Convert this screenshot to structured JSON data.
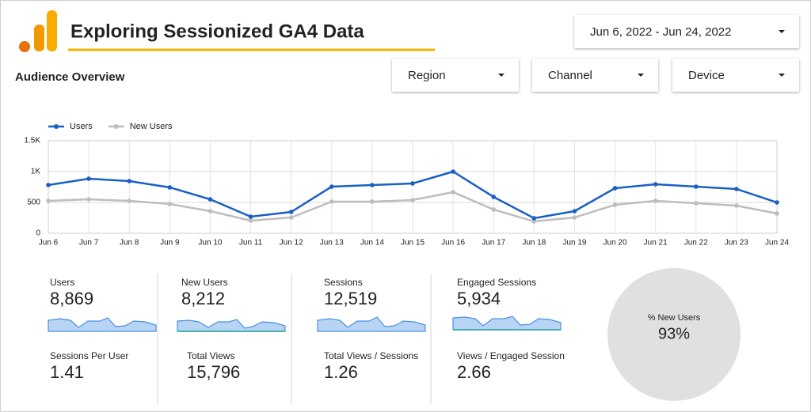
{
  "header": {
    "title": "Exploring Sessionized GA4 Data",
    "date_range": "Jun 6, 2022 - Jun 24, 2022",
    "section": "Audience Overview",
    "filters": [
      "Region",
      "Channel",
      "Device"
    ]
  },
  "chart_data": {
    "type": "line",
    "categories": [
      "Jun 6",
      "Jun 7",
      "Jun 8",
      "Jun 9",
      "Jun 10",
      "Jun 11",
      "Jun 12",
      "Jun 13",
      "Jun 14",
      "Jun 15",
      "Jun 16",
      "Jun 17",
      "Jun 18",
      "Jun 19",
      "Jun 20",
      "Jun 21",
      "Jun 22",
      "Jun 23",
      "Jun 24"
    ],
    "series": [
      {
        "name": "Users",
        "color": "#1a5fc4",
        "values": [
          782,
          885,
          846,
          744,
          551,
          269,
          346,
          756,
          782,
          808,
          1000,
          590,
          244,
          359,
          731,
          795,
          756,
          718,
          500
        ]
      },
      {
        "name": "New Users",
        "color": "#bdbdbd",
        "values": [
          526,
          551,
          526,
          474,
          359,
          205,
          256,
          513,
          513,
          538,
          667,
          385,
          192,
          256,
          462,
          526,
          487,
          449,
          321
        ]
      }
    ],
    "ylim": [
      0,
      1500
    ],
    "yticks": [
      0,
      500,
      {
        "value": 1000,
        "label": "1K"
      },
      {
        "value": 1500,
        "label": "1.5K"
      }
    ],
    "grid": true,
    "legend": "top-left"
  },
  "scorecards": [
    {
      "label": "Users",
      "value": "8,869"
    },
    {
      "label": "Sessions Per User",
      "value": "1.41"
    },
    {
      "label": "New Users",
      "value": "8,212"
    },
    {
      "label": "Total Views",
      "value": "15,796"
    },
    {
      "label": "Sessions",
      "value": "12,519"
    },
    {
      "label": "Total Views / Sessions",
      "value": "1.26"
    },
    {
      "label": "Engaged Sessions",
      "value": "5,934"
    },
    {
      "label": "Views / Engaged Session",
      "value": "2.66"
    }
  ],
  "gauge": {
    "label": "% New Users",
    "value": "93%"
  }
}
